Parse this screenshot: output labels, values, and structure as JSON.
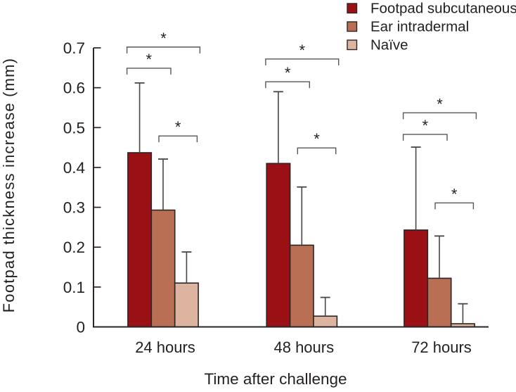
{
  "chart_data": {
    "type": "bar",
    "title": "",
    "xlabel": "Time after challenge",
    "ylabel": "Footpad thickness increase (mm)",
    "categories": [
      "24 hours",
      "48 hours",
      "72 hours"
    ],
    "series": [
      {
        "name": "Footpad subcutaneous",
        "color": "#9a1015",
        "values": [
          0.437,
          0.41,
          0.243
        ],
        "errors_plus": [
          0.175,
          0.18,
          0.208
        ]
      },
      {
        "name": "Ear intradermal",
        "color": "#b96f53",
        "values": [
          0.293,
          0.205,
          0.122
        ],
        "errors_plus": [
          0.128,
          0.146,
          0.106
        ]
      },
      {
        "name": "Naïve",
        "color": "#dcb4a0",
        "values": [
          0.11,
          0.027,
          0.008
        ],
        "errors_plus": [
          0.078,
          0.047,
          0.05
        ]
      }
    ],
    "ylim": [
      0,
      0.7
    ],
    "yticks": [
      0,
      0.1,
      0.2,
      0.3,
      0.4,
      0.5,
      0.6,
      0.7
    ],
    "ytick_labels": [
      "0",
      "0.1",
      "0.2",
      "0.3",
      "0.4",
      "0.5",
      "0.6",
      "0.7"
    ],
    "grid": false,
    "error_bars": "upper-only",
    "legend_position": "top-right",
    "significance_marker": "*",
    "significance_brackets": [
      {
        "category": 0,
        "pair": [
          0,
          2
        ],
        "y": 0.702,
        "label": "*"
      },
      {
        "category": 0,
        "pair": [
          0,
          1
        ],
        "y": 0.649,
        "label": "*"
      },
      {
        "category": 0,
        "pair": [
          1,
          2
        ],
        "y": 0.479,
        "label": "*"
      },
      {
        "category": 1,
        "pair": [
          0,
          2
        ],
        "y": 0.672,
        "label": "*"
      },
      {
        "category": 1,
        "pair": [
          0,
          1
        ],
        "y": 0.615,
        "label": "*"
      },
      {
        "category": 1,
        "pair": [
          1,
          2
        ],
        "y": 0.449,
        "label": "*"
      },
      {
        "category": 2,
        "pair": [
          0,
          2
        ],
        "y": 0.537,
        "label": "*"
      },
      {
        "category": 2,
        "pair": [
          0,
          1
        ],
        "y": 0.483,
        "label": "*"
      },
      {
        "category": 2,
        "pair": [
          1,
          2
        ],
        "y": 0.311,
        "label": "*"
      }
    ],
    "colors": {
      "background": "#ffffff",
      "axis": "#2b2624",
      "text": "#231f20",
      "error_bar": "#4a4543",
      "bracket": "#5b5654"
    }
  }
}
